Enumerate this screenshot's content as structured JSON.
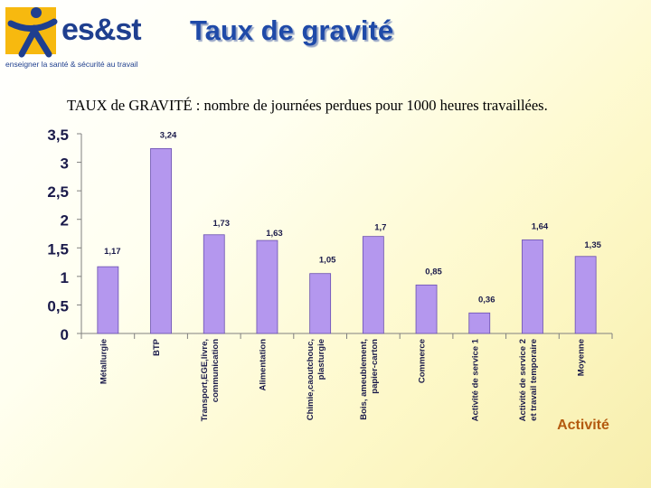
{
  "header": {
    "logo_text": "es&st",
    "logo_tagline": "enseigner la santé & sécurité au travail",
    "title": "Taux de gravité"
  },
  "subtitle": "TAUX de GRAVITÉ :   nombre de journées perdues pour 1000 heures travaillées.",
  "colors": {
    "bar": "#b497ee",
    "bar_edge": "#6a4fb0",
    "title": "#1f4aa8",
    "xlabel": "#b45a0f"
  },
  "chart_data": {
    "type": "bar",
    "title": "",
    "xlabel": "Activité",
    "ylabel": "",
    "ylim": [
      0,
      3.5
    ],
    "yticks": [
      "0",
      "0,5",
      "1",
      "1,5",
      "2",
      "2,5",
      "3",
      "3,5"
    ],
    "categories": [
      "Métallurgie",
      "BTP",
      "Transport,EGE,livre, communication",
      "Alimentation",
      "Chimie,caoutchouc, plasturgie",
      "Bois, ameublement, papier-carton",
      "Commerce",
      "Activité de service 1",
      "Activité de service 2 et travail temporaire",
      "Moyenne"
    ],
    "category_lines": [
      [
        "Métallurgie"
      ],
      [
        "BTP"
      ],
      [
        "Transport,EGE,livre,",
        "communication"
      ],
      [
        "Alimentation"
      ],
      [
        "Chimie,caoutchouc,",
        "plasturgie"
      ],
      [
        "Bois, ameublement,",
        "papier-carton"
      ],
      [
        "Commerce"
      ],
      [
        "Activité de service 1"
      ],
      [
        "Activité de service 2",
        "et travail temporaire"
      ],
      [
        "Moyenne"
      ]
    ],
    "values": [
      1.17,
      3.24,
      1.73,
      1.63,
      1.05,
      1.7,
      0.85,
      0.36,
      1.64,
      1.35
    ],
    "data_labels": [
      "1,17",
      "3,24",
      "1,73",
      "1,63",
      "1,05",
      "1,7",
      "0,85",
      "0,36",
      "1,64",
      "1,35"
    ],
    "grid": false,
    "legend": "none"
  }
}
